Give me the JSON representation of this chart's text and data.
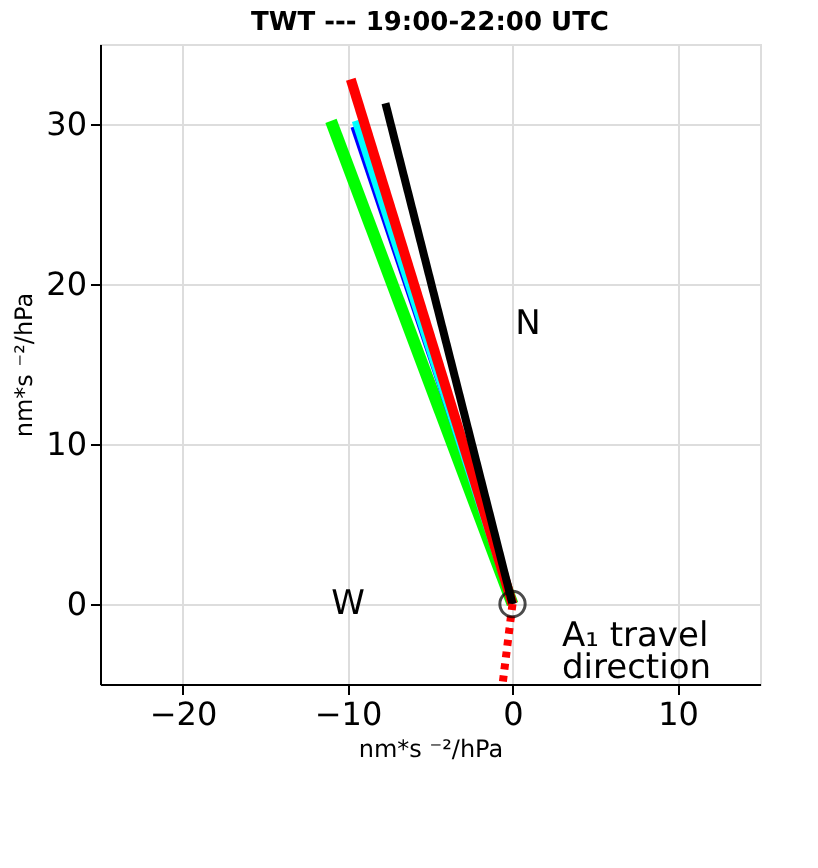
{
  "chart_data": {
    "type": "line",
    "title": "TWT --- 19:00-22:00 UTC",
    "xlabel": "nm*s ⁻²/hPa",
    "ylabel": "nm*s ⁻²/hPa",
    "xlim": [
      -25,
      15
    ],
    "ylim": [
      -5,
      35
    ],
    "xticks": [
      -20,
      -10,
      0,
      10
    ],
    "yticks": [
      0,
      10,
      20,
      30
    ],
    "grid": true,
    "series": [
      {
        "color": "#00ff00",
        "x": [
          0,
          -11
        ],
        "values": [
          0,
          30.2
        ]
      },
      {
        "color": "#0000ff",
        "x": [
          0,
          -9.7
        ],
        "values": [
          0,
          29.8
        ]
      },
      {
        "color": "#00ffff",
        "x": [
          0,
          -9.5
        ],
        "values": [
          0,
          30.2
        ]
      },
      {
        "color": "#ff0000",
        "x": [
          0,
          -9.8
        ],
        "values": [
          0,
          32.8
        ]
      },
      {
        "color": "#000000",
        "x": [
          0,
          -7.7
        ],
        "values": [
          0,
          31.3
        ]
      },
      {
        "color": "#ff0000",
        "x": [
          0,
          -0.6
        ],
        "values": [
          0,
          -5
        ],
        "line_style": "dotted"
      },
      {
        "type": "scatter",
        "color": "#000000",
        "x": [
          0
        ],
        "values": [
          0
        ],
        "marker": "circle"
      }
    ],
    "annotations": [
      "N",
      "W",
      "A₁ travel direction"
    ]
  }
}
